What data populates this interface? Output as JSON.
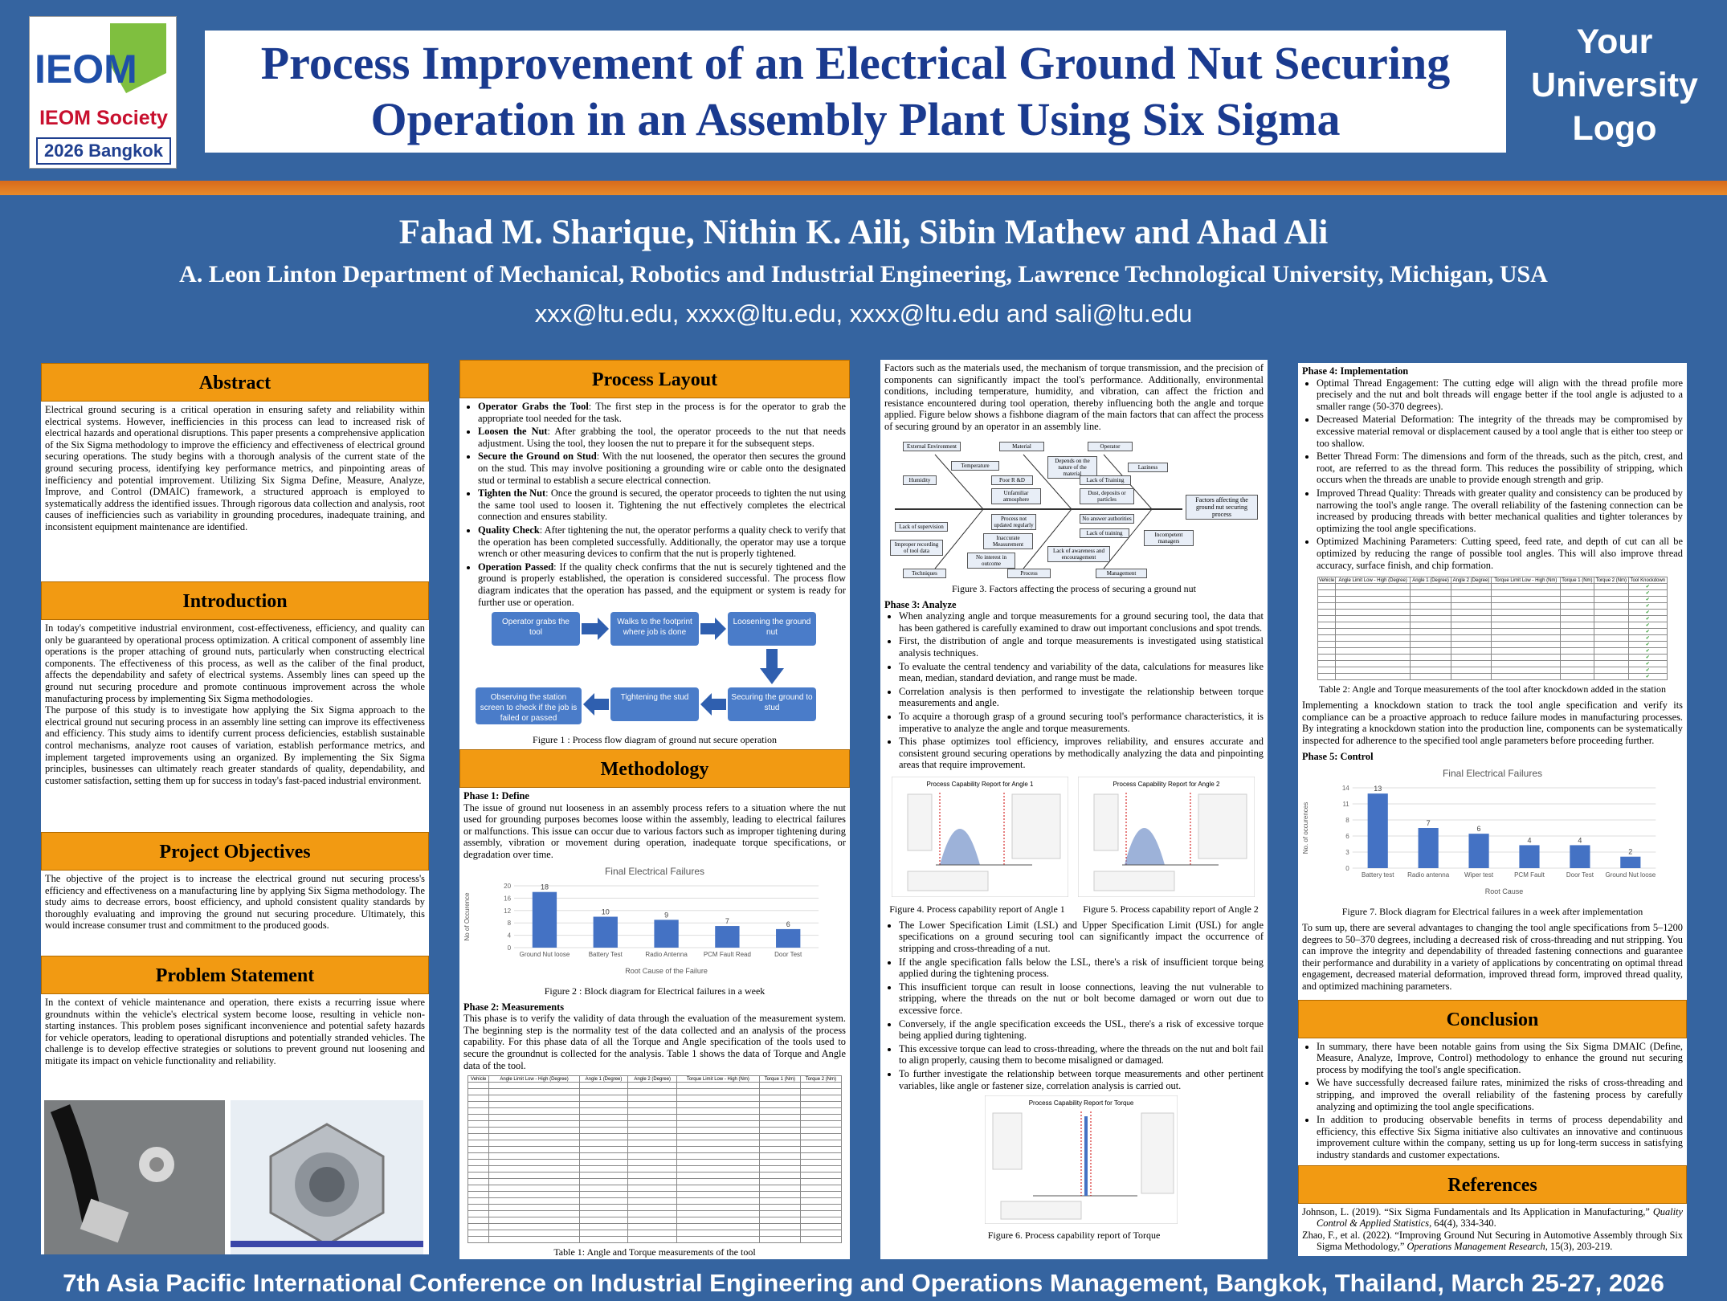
{
  "header": {
    "logo_top": "IEOM",
    "logo_society": "IEOM Society",
    "logo_event": "2026 Bangkok",
    "title_line1": "Process Improvement of an Electrical Ground Nut Securing",
    "title_line2": "Operation in an Assembly Plant Using Six Sigma",
    "uni_line1": "Your",
    "uni_line2": "University",
    "uni_line3": "Logo"
  },
  "authors": "Fahad M. Sharique, Nithin K. Aili, Sibin Mathew and Ahad Ali",
  "affiliation": "A. Leon Linton Department of Mechanical, Robotics and Industrial Engineering, Lawrence Technological University, Michigan, USA",
  "emails": "xxx@ltu.edu, xxxx@ltu.edu, xxxx@ltu.edu and sali@ltu.edu",
  "footer": "7th Asia Pacific International Conference on Industrial Engineering and Operations Management, Bangkok, Thailand, March 25-27, 2026",
  "col1": {
    "abstract_h": "Abstract",
    "abstract": "Electrical ground securing is a critical operation in ensuring safety and reliability within electrical systems. However, inefficiencies in this process can lead to increased risk of electrical hazards and operational disruptions. This paper presents a comprehensive application of the Six Sigma methodology to improve the efficiency and effectiveness of electrical ground securing operations. The study begins with a thorough analysis of the current state of the ground securing process, identifying key performance metrics, and pinpointing areas of inefficiency and potential improvement. Utilizing Six Sigma Define, Measure, Analyze, Improve, and Control (DMAIC) framework, a structured approach is employed to systematically address the identified issues. Through rigorous data collection and analysis, root causes of inefficiencies such as variability in grounding procedures, inadequate training, and inconsistent equipment maintenance are identified.",
    "intro_h": "Introduction",
    "intro1": "In today's competitive industrial environment, cost-effectiveness, efficiency, and quality can only be guaranteed by operational process optimization. A critical component of assembly line operations is the proper attaching of ground nuts, particularly when constructing electrical components. The effectiveness of this process, as well as the caliber of the final product, affects the dependability and safety of electrical systems. Assembly lines can speed up the ground nut securing procedure and promote continuous improvement across the whole manufacturing process by implementing Six Sigma methodologies.",
    "intro2": "The purpose of this study is to investigate how applying the Six Sigma approach to the electrical ground nut securing process in an assembly line setting can improve its effectiveness and efficiency. This study aims to identify current process deficiencies, establish sustainable control mechanisms, analyze root causes of variation, establish performance metrics, and implement targeted improvements using an organized. By implementing the Six Sigma principles, businesses can ultimately reach greater standards of quality, dependability, and customer satisfaction, setting them up for success in today's fast-paced industrial environment.",
    "obj_h": "Project Objectives",
    "obj": "The objective of the project is to increase the electrical ground nut securing process's efficiency and effectiveness on a manufacturing line by applying Six Sigma methodology. The study aims to decrease errors, boost efficiency, and uphold consistent quality standards by thoroughly evaluating and improving the ground nut securing procedure. Ultimately, this would increase consumer trust and commitment to the produced goods.",
    "prob_h": "Problem Statement",
    "prob": "In the context of vehicle maintenance and operation, there exists a recurring issue where groundnuts within the vehicle's electrical system become loose, resulting in vehicle non-starting instances. This problem poses significant inconvenience and potential safety hazards for vehicle operators, leading to operational disruptions and potentially stranded vehicles. The challenge is to develop effective strategies or solutions to prevent ground nut loosening and mitigate its impact on vehicle functionality and reliability."
  },
  "col2": {
    "layout_h": "Process Layout",
    "steps": [
      {
        "b": "Operator Grabs the Tool",
        "t": ": The first step in the process is for the operator to grab the appropriate tool needed for the task."
      },
      {
        "b": "Loosen the Nut",
        "t": ": After grabbing the tool, the operator proceeds to the nut that needs adjustment. Using the tool, they loosen the nut to prepare it for the subsequent steps."
      },
      {
        "b": "Secure the Ground on Stud",
        "t": ": With the nut loosened, the operator then secures the ground on the stud. This may involve positioning a grounding wire or cable onto the designated stud or terminal to establish a secure electrical connection."
      },
      {
        "b": "Tighten the Nut",
        "t": ": Once the ground is secured, the operator proceeds to tighten the nut using the same tool used to loosen it. Tightening the nut effectively completes the electrical connection and ensures stability."
      },
      {
        "b": "Quality Check",
        "t": ": After tightening the nut, the operator performs a quality check to verify that the operation has been completed successfully. Additionally, the operator may use a torque wrench or other measuring devices to confirm that the nut is properly tightened."
      },
      {
        "b": "Operation Passed",
        "t": ": If the quality check confirms that the nut is securely tightened and the ground is properly established, the operation is considered successful. The process flow diagram indicates that the operation has passed, and the equipment or system is ready for further use or operation."
      }
    ],
    "flow": [
      "Operator grabs the tool",
      "Walks to the footprint where job is done",
      "Loosening the ground nut",
      "Securing the ground to stud",
      "Tightening the stud",
      "Observing the station screen to check if the job is failed or passed"
    ],
    "fig1": "Figure 1 : Process flow diagram of ground nut secure operation",
    "meth_h": "Methodology",
    "p1_h": "Phase 1: Define",
    "p1": "The issue of ground nut looseness in an assembly process refers to a situation where the nut used for grounding purposes becomes loose within the assembly, leading to electrical failures or malfunctions. This issue can occur due to various factors such as improper tightening during assembly, vibration or movement during operation, inadequate torque specifications, or degradation over time.",
    "fig2": "Figure 2 : Block diagram for Electrical failures in a week",
    "p2_h": "Phase 2: Measurements",
    "p2": "This phase is to verify the validity of data through the evaluation of the measurement system. The beginning step is the normality test of the data collected and an analysis of the process capability. For this phase data of all the Torque and Angle specification of the tools used to secure the groundnut is collected for the analysis. Table 1 shows the data of Torque and Angle data of the tool.",
    "tab1": "Table 1: Angle and Torque measurements of the tool",
    "tab_headers": [
      "Vehicle",
      "Angle Limit Low - High (Degree)",
      "Angle 1 (Degree)",
      "Angle 2 (Degree)",
      "Torque Limit Low - High (Nm)",
      "Torque 1 (Nm)",
      "Torque 2 (Nm)"
    ]
  },
  "col3": {
    "intro": "Factors such as the materials used, the mechanism of torque transmission, and the precision of components can significantly impact the tool's performance. Additionally, environmental conditions, including temperature, humidity, and vibration, can affect the friction and resistance encountered during tool operation, thereby influencing both the angle and torque applied. Figure below shows a fishbone diagram of the main factors that can affect the process of securing ground by an operator in an assembly line.",
    "fish_labels": [
      "External Environment",
      "Material",
      "Operator",
      "Temperature",
      "Depends on the nature of the material",
      "Laziness",
      "Humidity",
      "Poor R &D",
      "Lack of Training",
      "Unfamiliar atmosphere",
      "Dust, deposits or particles",
      "Process not updated regularly",
      "No answer authorities",
      "Lack of supervision",
      "Inaccurate Measurement",
      "Lack of training",
      "Incompetent managers",
      "Improper recording of tool data",
      "No interest in outcome",
      "Lack of awareness and encouragement",
      "Techniques",
      "Process",
      "Management",
      "Factors affecting the ground nut securing process"
    ],
    "fig3": "Figure 3. Factors affecting the process of securing a ground nut",
    "p3_h": "Phase 3: Analyze",
    "p3_list": [
      "When analyzing angle and torque measurements for a ground securing tool, the data that has been gathered is carefully examined to draw out important conclusions and spot trends.",
      "First, the distribution of angle and torque measurements is investigated using statistical analysis techniques.",
      "To evaluate the central tendency and variability of the data, calculations for measures like mean, median, standard deviation, and range must be made.",
      "Correlation analysis is then performed to investigate the relationship between torque measurements and angle.",
      "To acquire a thorough grasp of a ground securing tool's performance characteristics, it is imperative to analyze the angle and torque measurements.",
      "This phase optimizes tool efficiency, improves reliability, and ensures accurate and consistent ground securing operations by methodically analyzing the data and pinpointing areas that require improvement."
    ],
    "pc1_title": "Process Capability Report for Angle 1",
    "pc2_title": "Process Capability Report for Angle 2",
    "fig4": "Figure 4. Process capability report of Angle 1",
    "fig5": "Figure 5. Process capability report of Angle 2",
    "p3_list2": [
      "The Lower Specification Limit (LSL) and Upper Specification Limit (USL) for angle specifications on a ground securing tool can significantly impact the occurrence of stripping and cross-threading of a nut.",
      "If the angle specification falls below the LSL, there's a risk of insufficient torque being applied during the tightening process.",
      "This insufficient torque can result in loose connections, leaving the nut vulnerable to stripping, where the threads on the nut or bolt become damaged or worn out due to excessive force.",
      "Conversely, if the angle specification exceeds the USL, there's a risk of excessive torque being applied during tightening.",
      "This excessive torque can lead to cross-threading, where the threads on the nut and bolt fail to align properly, causing them to become misaligned or damaged.",
      "To further investigate the relationship between torque measurements and other pertinent variables, like angle or fastener size, correlation analysis is carried out."
    ],
    "pc3_title": "Process Capability Report for Torque",
    "fig6": "Figure 6. Process capability report of Torque"
  },
  "col4": {
    "p4_h": "Phase 4: Implementation",
    "p4_list": [
      "Optimal Thread Engagement: The cutting edge will align with the thread profile more precisely and the nut and bolt threads will engage better if the tool angle is adjusted to a smaller range (50-370 degrees).",
      "Decreased Material Deformation: The integrity of the threads may be compromised by excessive material removal or displacement caused by a tool angle that is either too steep or too shallow.",
      "Better Thread Form: The dimensions and form of the threads, such as the pitch, crest, and root, are referred to as the thread form. This reduces the possibility of stripping, which occurs when the threads are unable to provide enough strength and grip.",
      "Improved Thread Quality: Threads with greater quality and consistency can be produced by narrowing the tool's angle range. The overall reliability of the fastening connection can be increased by producing threads with better mechanical qualities and tighter tolerances by optimizing the tool angle specifications.",
      "Optimized Machining Parameters: Cutting speed, feed rate, and depth of cut can all be optimized by reducing the range of possible tool angles. This will also improve thread accuracy, surface finish, and chip formation."
    ],
    "tab2_headers": [
      "Vehicle",
      "Angle Limit Low - High (Degree)",
      "Angle 1 (Degree)",
      "Angle 2 (Degree)",
      "Torque Limit Low - High (Nm)",
      "Torque 1 (Nm)",
      "Torque 2 (Nm)",
      "Tool Knockdown"
    ],
    "tab2": "Table 2: Angle and Torque measurements of the tool after knockdown added in the station",
    "impl": "Implementing a knockdown station to track the tool angle specification and verify its compliance can be a proactive approach to reduce failure modes in manufacturing processes. By integrating a knockdown station into the production line, components can be systematically inspected for adherence to the specified tool angle parameters before proceeding further.",
    "p5_h": "Phase 5: Control",
    "fig7": "Figure 7. Block diagram for Electrical failures in a week after implementation",
    "sum": "To sum up, there are several advantages to changing the tool angle specifications from 5–1200 degrees to 50–370 degrees, including a decreased risk of cross-threading and nut stripping. You can improve the integrity and dependability of threaded fastening connections and guarantee their performance and durability in a variety of applications by concentrating on optimal thread engagement, decreased material deformation, improved thread form, improved thread quality, and optimized machining parameters.",
    "concl_h": "Conclusion",
    "concl_list": [
      "In summary, there have been notable gains from using the Six Sigma DMAIC (Define, Measure, Analyze, Improve, Control) methodology to enhance the ground nut securing process by modifying the tool's angle specification.",
      "We have successfully decreased failure rates, minimized the risks of cross-threading and stripping, and improved the overall reliability of the fastening process by carefully analyzing and optimizing the tool angle specifications.",
      "In addition to producing observable benefits in terms of process dependability and efficiency, this effective Six Sigma initiative also cultivates an innovative and continuous improvement culture within the company, setting us up for long-term success in satisfying industry standards and customer expectations."
    ],
    "ref_h": "References",
    "ref1a": "Johnson, L. (2019). “Six Sigma Fundamentals and Its Application in Manufacturing,” ",
    "ref1b": "Quality Control & Applied Statistics",
    "ref1c": ", 64(4), 334-340.",
    "ref2a": "Zhao, F., et al. (2022). “Improving Ground Nut Securing in Automotive Assembly through Six Sigma Methodology,” ",
    "ref2b": "Operations Management Research",
    "ref2c": ", 15(3), 203-219."
  },
  "chart_data": [
    {
      "type": "bar",
      "title": "Final Electrical Failures",
      "categories": [
        "Ground Nut loose",
        "Battery Test",
        "Radio Antenna",
        "PCM Fault Read",
        "Door Test"
      ],
      "values": [
        18,
        10,
        9,
        7,
        6
      ],
      "xlabel": "Root Cause of the Failure",
      "ylabel": "No of Occurence",
      "ylim": [
        0,
        20
      ],
      "color": "#4472c4"
    },
    {
      "type": "bar",
      "title": "Final Electrical Failures",
      "categories": [
        "Battery test",
        "Radio antenna",
        "Wiper test",
        "PCM Fault",
        "Door Test",
        "Ground Nut loose"
      ],
      "values": [
        13,
        7,
        6,
        4,
        4,
        2
      ],
      "xlabel": "Root Cause",
      "ylabel": "No. of occurences",
      "ylim": [
        0,
        14
      ],
      "color": "#4472c4"
    }
  ]
}
